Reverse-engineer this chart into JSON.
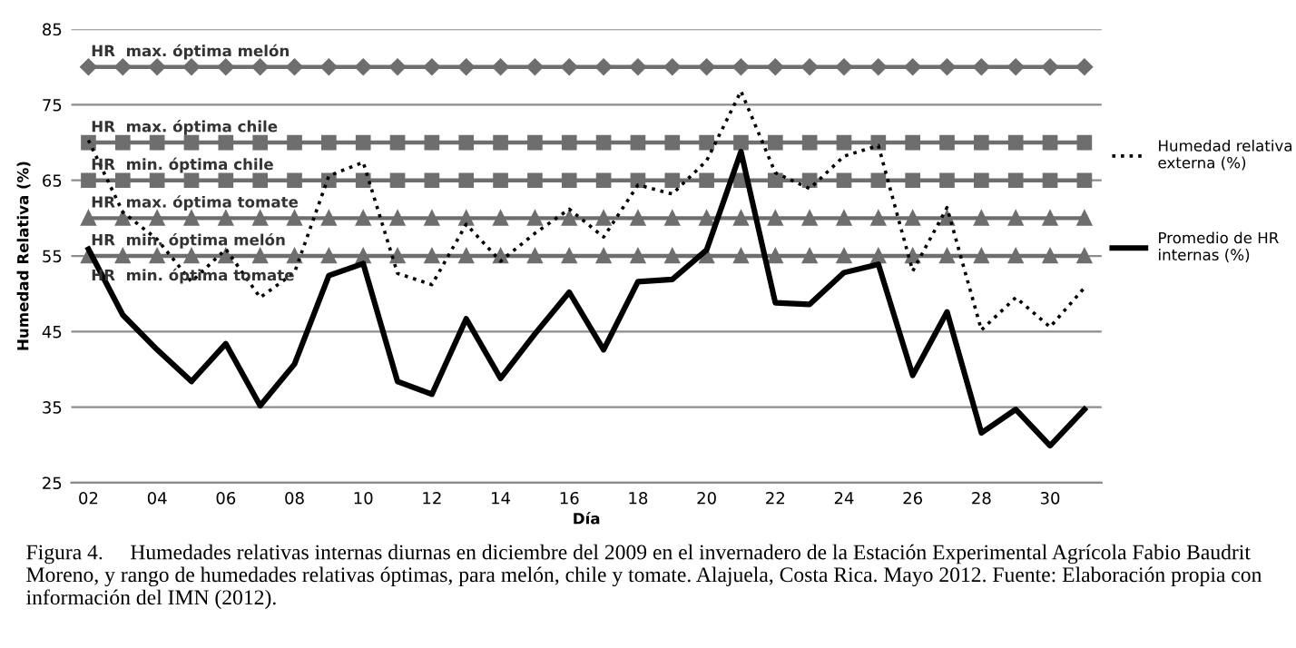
{
  "chart_data": {
    "type": "line",
    "ylabel": "Humedad Relativa (%)",
    "xlabel": "Día",
    "categories": [
      "02",
      null,
      "04",
      null,
      "06",
      null,
      "08",
      null,
      "10",
      null,
      "12",
      null,
      "14",
      null,
      "16",
      null,
      "18",
      null,
      "20",
      null,
      "22",
      null,
      "24",
      null,
      "26",
      null,
      "28",
      null,
      "30",
      null
    ],
    "ylim": [
      25,
      85
    ],
    "yticks": [
      25,
      35,
      45,
      55,
      65,
      75,
      85
    ],
    "grid": "y",
    "legend": "right",
    "series": [
      {
        "color": "#6e6e6e",
        "marker": "diamond",
        "values": [
          80,
          80,
          80,
          80,
          80,
          80,
          80,
          80,
          80,
          80,
          80,
          80,
          80,
          80,
          80,
          80,
          80,
          80,
          80,
          80,
          80,
          80,
          80,
          80,
          80,
          80,
          80,
          80,
          80,
          80
        ]
      },
      {
        "color": "#6e6e6e",
        "marker": "square",
        "values": [
          70,
          70,
          70,
          70,
          70,
          70,
          70,
          70,
          70,
          70,
          70,
          70,
          70,
          70,
          70,
          70,
          70,
          70,
          70,
          70,
          70,
          70,
          70,
          70,
          70,
          70,
          70,
          70,
          70,
          70
        ]
      },
      {
        "color": "#6e6e6e",
        "marker": "square",
        "values": [
          65,
          65,
          65,
          65,
          65,
          65,
          65,
          65,
          65,
          65,
          65,
          65,
          65,
          65,
          65,
          65,
          65,
          65,
          65,
          65,
          65,
          65,
          65,
          65,
          65,
          65,
          65,
          65,
          65,
          65
        ]
      },
      {
        "color": "#6e6e6e",
        "marker": "triangle",
        "values": [
          60,
          60,
          60,
          60,
          60,
          60,
          60,
          60,
          60,
          60,
          60,
          60,
          60,
          60,
          60,
          60,
          60,
          60,
          60,
          60,
          60,
          60,
          60,
          60,
          60,
          60,
          60,
          60,
          60,
          60
        ]
      },
      {
        "color": "#6e6e6e",
        "marker": "triangle",
        "values": [
          55,
          55,
          55,
          55,
          55,
          55,
          55,
          55,
          55,
          55,
          55,
          55,
          55,
          55,
          55,
          55,
          55,
          55,
          55,
          55,
          55,
          55,
          55,
          55,
          55,
          55,
          55,
          55,
          55,
          55
        ]
      },
      {
        "name": "Humedad relativa externa (%)",
        "color": "#000000",
        "line_style": "dotted",
        "values": [
          70.3,
          60.8,
          57.2,
          51.6,
          55.9,
          49.5,
          52.8,
          65.6,
          67.4,
          52.7,
          51.2,
          59.2,
          54.3,
          58.0,
          61.2,
          57.5,
          64.4,
          63.2,
          67.6,
          76.8,
          66.0,
          63.9,
          68.2,
          69.6,
          53.0,
          61.4,
          45.2,
          49.5,
          45.6,
          50.8
        ]
      },
      {
        "name": "Promedio de HR internas (%)",
        "color": "#000000",
        "line_style": "solid",
        "values": [
          55.9,
          47.2,
          42.6,
          38.4,
          43.4,
          35.2,
          40.7,
          52.4,
          54.0,
          38.4,
          36.7,
          46.7,
          38.8,
          44.7,
          50.2,
          42.6,
          51.6,
          51.9,
          55.8,
          68.8,
          48.8,
          48.6,
          52.8,
          53.9,
          39.2,
          47.6,
          31.6,
          34.7,
          29.9,
          34.7
        ]
      }
    ],
    "annotations": [
      {
        "text": "HR  max. óptima melón",
        "x": "02",
        "y": 80
      },
      {
        "text": "HR  max. óptima chile",
        "x": "02",
        "y": 70
      },
      {
        "text": "HR  min. óptima chile",
        "x": "02",
        "y": 65
      },
      {
        "text": "HR  max. óptima tomate",
        "x": "02",
        "y": 60
      },
      {
        "text": "HR  min. óptima melón",
        "x": "02",
        "y": 55
      },
      {
        "text": "HR  min. óptima tomate",
        "x": "02",
        "y": 55
      },
      "Figura 4.     Humedades relativas internas diurnas en diciembre del 2009 en el invernadero de la Estación Experimental Agrícola Fabio Baudrit Moreno, y rango de humedades relativas óptimas, para melón, chile y tomate. Alajuela, Costa Rica. Mayo 2012. Fuente: Elaboración propia con información del IMN (2012)."
    ]
  }
}
